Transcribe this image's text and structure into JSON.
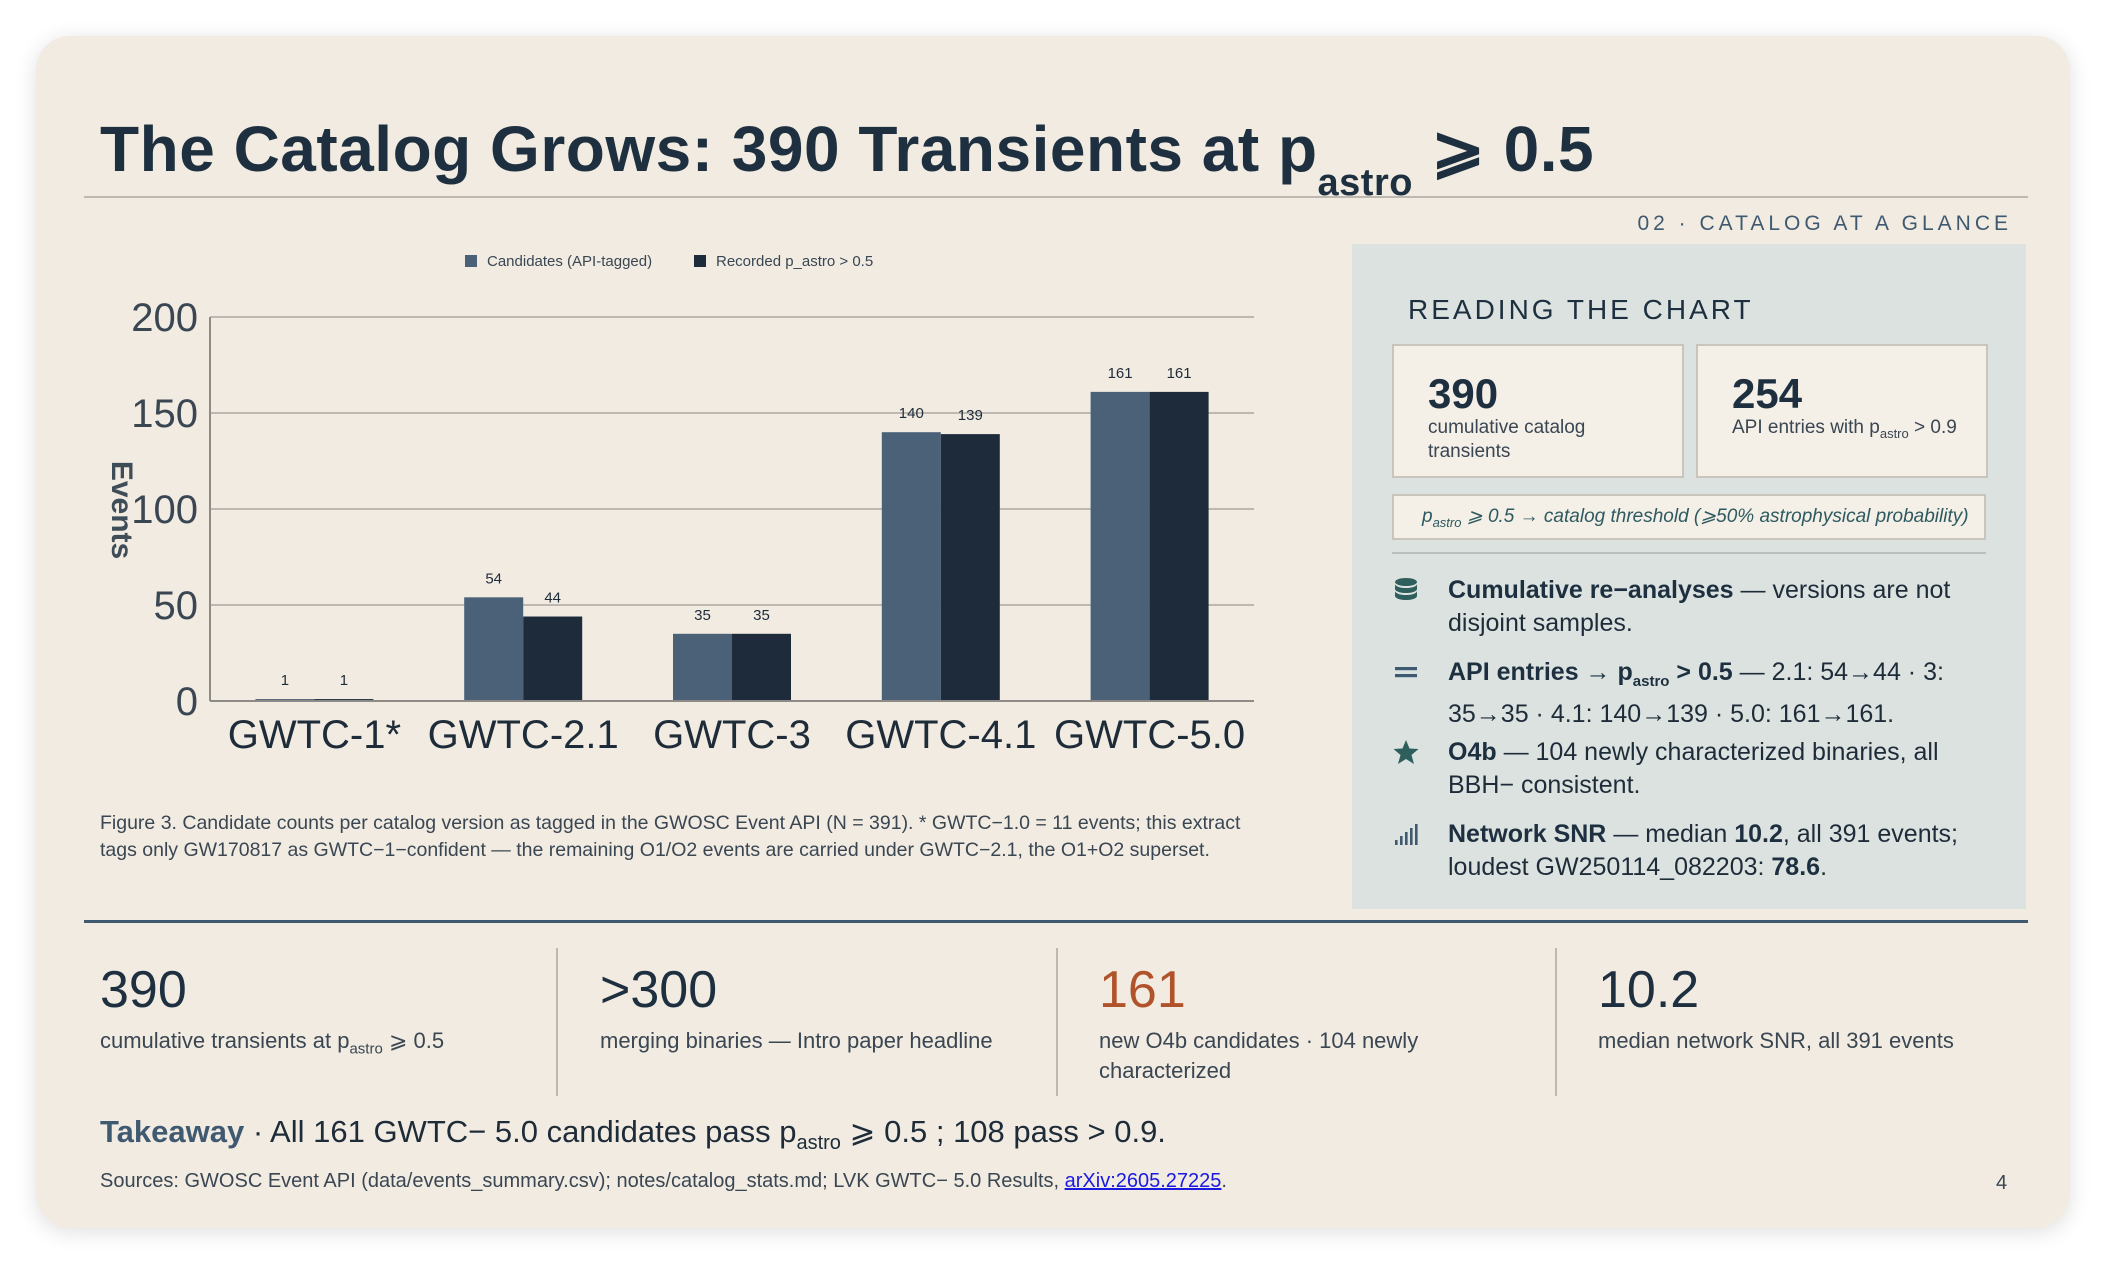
{
  "slide": {
    "title_pre": "The Catalog Grows: 390 Transients at p",
    "title_sub": "astro",
    "title_post": " ⩾ 0.5",
    "section_tag": "02 · CATALOG AT A GLANCE",
    "page_number": "4"
  },
  "chart_data": {
    "type": "bar",
    "categories": [
      "GWTC-1*",
      "GWTC-2.1",
      "GWTC-3",
      "GWTC-4.1",
      "GWTC-5.0"
    ],
    "series": [
      {
        "name": "Candidates (API-tagged)",
        "values": [
          1,
          54,
          35,
          140,
          161
        ]
      },
      {
        "name": "Recorded p_astro > 0.5",
        "values": [
          1,
          44,
          35,
          139,
          161
        ]
      }
    ],
    "ylabel": "Events",
    "ylim": [
      0,
      200
    ],
    "yticks": [
      0,
      50,
      100,
      150,
      200
    ],
    "grid": true,
    "legend_position": "top-center",
    "colors": [
      "#4a6178",
      "#1e2b3a"
    ]
  },
  "caption": "Figure 3. Candidate counts per catalog version as tagged in the GWOSC Event API (N = 391). * GWTC−1.0 = 11 events; this extract tags only GW170817 as GWTC−1−confident — the remaining O1/O2 events are carried under GWTC−2.1, the O1+O2 superset.",
  "panel": {
    "title": "READING THE CHART",
    "stat1": {
      "value": "390",
      "label": "cumulative catalog transients"
    },
    "stat2": {
      "value": "254",
      "label_pre": "API entries with p",
      "label_sub": "astro",
      "label_post": " > 0.9"
    },
    "threshold": {
      "p": "p",
      "sub": "astro",
      "text": " ⩾ 0.5 → catalog threshold (⩾50% astrophysical probability)"
    },
    "bullets": [
      {
        "icon": "database-icon",
        "bold": "Cumulative re−analyses",
        "text": " — versions are not disjoint samples."
      },
      {
        "icon": "equals-icon",
        "bold_pre": "API entries → p",
        "bold_sub": "astro",
        "bold_post": " > 0.5",
        "text": " — 2.1: 54→44 · 3: 35→35 · 4.1: 140→139 · 5.0: 161→161."
      },
      {
        "icon": "star-icon",
        "bold": "O4b",
        "text": " — 104 newly characterized binaries, all BBH− consistent."
      },
      {
        "icon": "signal-icon",
        "bold": "Network SNR",
        "text1": " — median ",
        "bold2": "10.2",
        "text2": ", all 391 events; loudest GW250114_082203: ",
        "bold3": "78.6",
        "text3": "."
      }
    ]
  },
  "kpis": [
    {
      "value": "390",
      "label_pre": "cumulative transients at p",
      "label_sub": "astro",
      "label_post": " ⩾ 0.5",
      "color": "#1e3040"
    },
    {
      "value": ">300",
      "label": "merging binaries — Intro paper headline",
      "color": "#1e3040"
    },
    {
      "value": "161",
      "label": "new O4b candidates · 104 newly characterized",
      "color": "#b0532a"
    },
    {
      "value": "10.2",
      "label": "median network SNR, all 391 events",
      "color": "#1e3040"
    }
  ],
  "takeaway": {
    "label": "Takeaway",
    "sep": " · ",
    "text_pre": "All 161 GWTC− 5.0 candidates pass p",
    "text_sub": "astro",
    "text_post": " ⩾ 0.5 ; 108 pass > 0.9."
  },
  "sources": {
    "text": "Sources: GWOSC Event API (data/events_summary.csv); notes/catalog_stats.md; LVK GWTC− 5.0 Results, ",
    "link": "arXiv:2605.27225",
    "end": "."
  }
}
